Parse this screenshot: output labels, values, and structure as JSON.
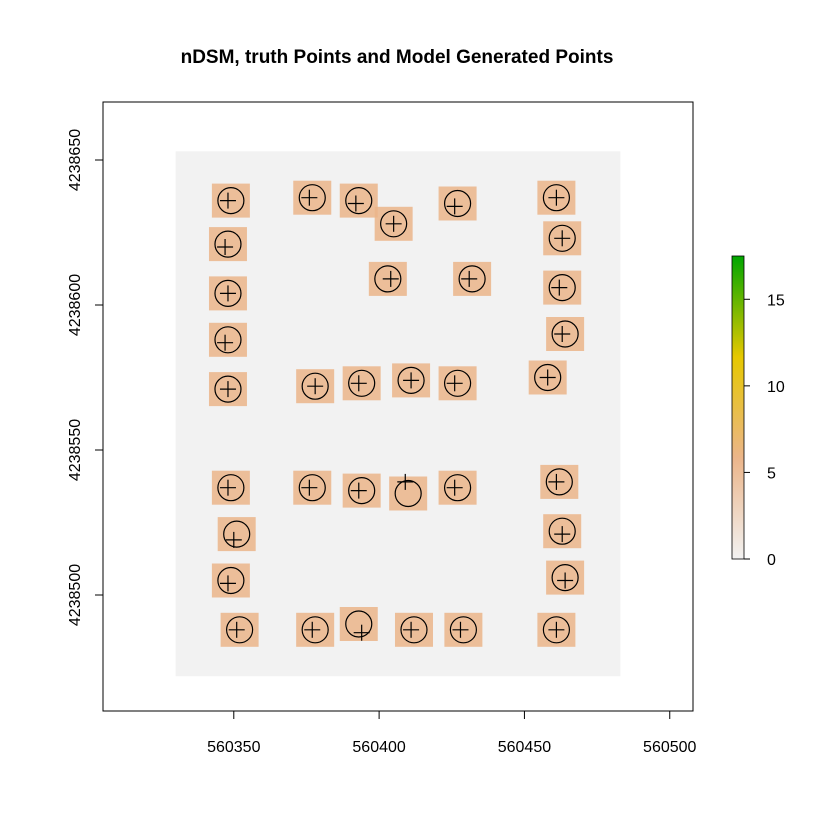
{
  "chart_data": {
    "type": "scatter",
    "title": "nDSM, truth Points and Model Generated Points",
    "xlabel": "",
    "ylabel": "",
    "xlim": [
      560305,
      560508
    ],
    "ylim": [
      4238460,
      4238670
    ],
    "x_ticks": [
      "560350",
      "560400",
      "560450",
      "560500"
    ],
    "x_tick_values": [
      560350,
      560400,
      560450,
      560500
    ],
    "y_ticks": [
      "4238500",
      "4238550",
      "4238600",
      "4238650"
    ],
    "y_tick_values": [
      4238500,
      4238550,
      4238600,
      4238650
    ],
    "raster_extent": {
      "x": [
        560330,
        560483
      ],
      "y": [
        4238472,
        4238653
      ]
    },
    "colorbar": {
      "ticks": [
        "0",
        "5",
        "10",
        "15"
      ],
      "tick_values": [
        0,
        5,
        10,
        15
      ],
      "range": [
        0,
        17.5
      ],
      "colors": [
        "#f2f2f2",
        "#ebb58a",
        "#e6c800",
        "#00a600"
      ]
    },
    "series": [
      {
        "marker": "plus",
        "points": [
          [
            560348,
            4238636
          ],
          [
            560376,
            4238637
          ],
          [
            560392,
            4238635
          ],
          [
            560405,
            4238628
          ],
          [
            560426,
            4238634
          ],
          [
            560461,
            4238637
          ],
          [
            560347,
            4238620
          ],
          [
            560463,
            4238623
          ],
          [
            560404,
            4238609
          ],
          [
            560431,
            4238609
          ],
          [
            560348,
            4238604
          ],
          [
            560462,
            4238606
          ],
          [
            560347,
            4238587
          ],
          [
            560463,
            4238590
          ],
          [
            560348,
            4238571
          ],
          [
            560378,
            4238572
          ],
          [
            560393,
            4238573
          ],
          [
            560411,
            4238574
          ],
          [
            560426,
            4238573
          ],
          [
            560458,
            4238575
          ],
          [
            560348,
            4238537
          ],
          [
            560376,
            4238537
          ],
          [
            560393,
            4238536
          ],
          [
            560409,
            4238539
          ],
          [
            560426,
            4238537
          ],
          [
            560461,
            4238539
          ],
          [
            560350,
            4238519
          ],
          [
            560463,
            4238521
          ],
          [
            560348,
            4238504
          ],
          [
            560464,
            4238505
          ],
          [
            560351,
            4238488
          ],
          [
            560377,
            4238488
          ],
          [
            560394,
            4238487
          ],
          [
            560411,
            4238488
          ],
          [
            560428,
            4238488
          ],
          [
            560461,
            4238488
          ]
        ]
      },
      {
        "marker": "circle",
        "points": [
          [
            560349,
            4238636
          ],
          [
            560377,
            4238637
          ],
          [
            560393,
            4238636
          ],
          [
            560405,
            4238628
          ],
          [
            560427,
            4238635
          ],
          [
            560461,
            4238637
          ],
          [
            560348,
            4238621
          ],
          [
            560463,
            4238623
          ],
          [
            560403,
            4238609
          ],
          [
            560432,
            4238609
          ],
          [
            560348,
            4238604
          ],
          [
            560463,
            4238606
          ],
          [
            560348,
            4238588
          ],
          [
            560464,
            4238590
          ],
          [
            560348,
            4238571
          ],
          [
            560378,
            4238572
          ],
          [
            560394,
            4238573
          ],
          [
            560411,
            4238574
          ],
          [
            560427,
            4238573
          ],
          [
            560458,
            4238575
          ],
          [
            560349,
            4238537
          ],
          [
            560377,
            4238537
          ],
          [
            560394,
            4238536
          ],
          [
            560410,
            4238535
          ],
          [
            560427,
            4238537
          ],
          [
            560462,
            4238539
          ],
          [
            560351,
            4238521
          ],
          [
            560463,
            4238522
          ],
          [
            560349,
            4238505
          ],
          [
            560464,
            4238506
          ],
          [
            560352,
            4238488
          ],
          [
            560378,
            4238488
          ],
          [
            560393,
            4238490
          ],
          [
            560412,
            4238488
          ],
          [
            560429,
            4238488
          ],
          [
            560461,
            4238488
          ]
        ]
      }
    ]
  }
}
